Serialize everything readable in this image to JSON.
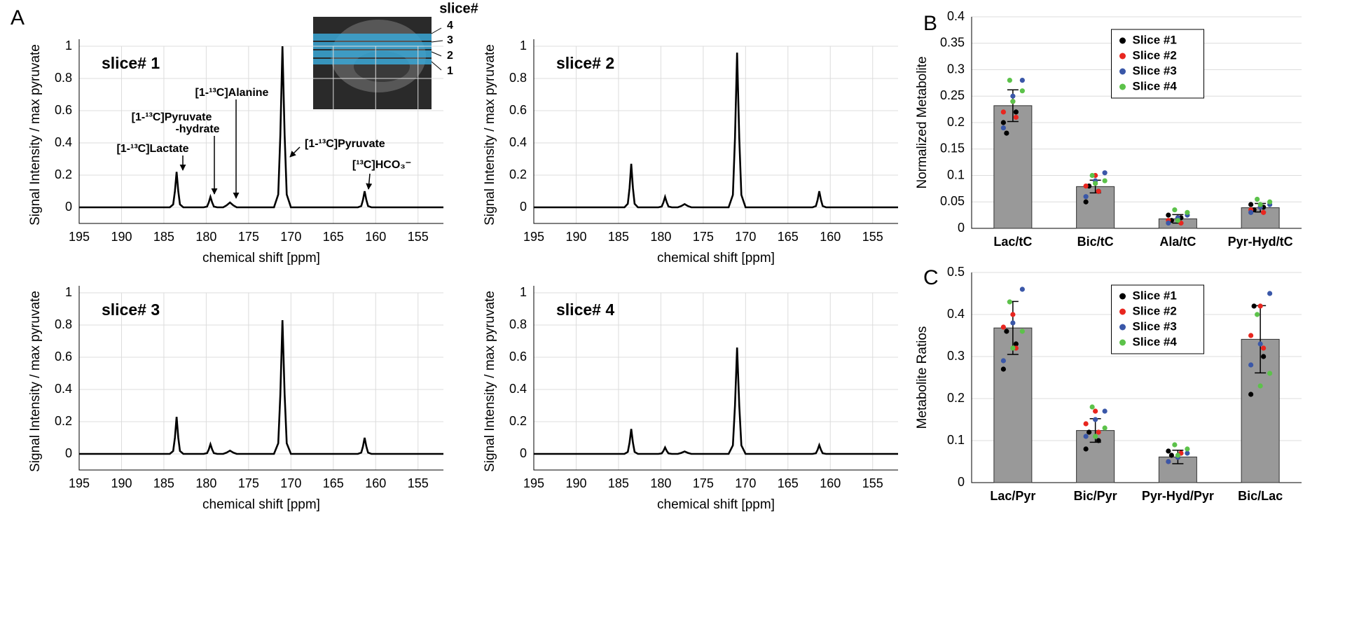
{
  "panels": [
    "A",
    "B",
    "C"
  ],
  "inset": {
    "title": "slice#",
    "labels": [
      "4",
      "3",
      "2",
      "1"
    ]
  },
  "chart_data": [
    {
      "type": "line",
      "title": "slice# 1",
      "xlabel": "chemical shift [ppm]",
      "ylabel": "Signal Intensity / max pyruvate",
      "color": "#000000",
      "grid": true,
      "xlim": [
        195,
        152
      ],
      "xticks": [
        195,
        190,
        185,
        180,
        175,
        170,
        165,
        160,
        155
      ],
      "ylim": [
        -0.1,
        1
      ],
      "yticks": [
        0,
        0.2,
        0.4,
        0.6,
        0.8,
        1
      ],
      "x": [
        195,
        185,
        184.3,
        183.9,
        183.7,
        183.5,
        183.3,
        183.1,
        182.7,
        180.3,
        179.9,
        179.7,
        179.5,
        179.3,
        179.1,
        178.7,
        178.0,
        177.6,
        177.2,
        176.8,
        176.4,
        172.0,
        171.5,
        171.25,
        171.0,
        170.75,
        170.5,
        170.0,
        162.1,
        161.7,
        161.5,
        161.3,
        161.1,
        160.9,
        160.5,
        152
      ],
      "values": [
        0,
        0,
        0,
        0.018,
        0.1,
        0.22,
        0.1,
        0.018,
        0,
        0,
        0.005,
        0.03,
        0.065,
        0.03,
        0.005,
        0,
        0,
        0.012,
        0.03,
        0.012,
        0,
        0,
        0.08,
        0.45,
        1.0,
        0.45,
        0.08,
        0,
        0,
        0.008,
        0.045,
        0.1,
        0.045,
        0.008,
        0,
        0
      ],
      "annotations": [
        "[1-¹³C]Lactate",
        "[1-¹³C]Pyruvate",
        "-hydrate",
        "[1-¹³C]Alanine",
        "[1-¹³C]Pyruvate",
        "[¹³C]HCO₃⁻"
      ]
    },
    {
      "type": "line",
      "title": "slice# 2",
      "xlabel": "chemical shift [ppm]",
      "ylabel": "Signal Intensity / max pyruvate",
      "color": "#000000",
      "grid": true,
      "xlim": [
        195,
        152
      ],
      "xticks": [
        195,
        190,
        185,
        180,
        175,
        170,
        165,
        160,
        155
      ],
      "ylim": [
        -0.1,
        1
      ],
      "yticks": [
        0,
        0.2,
        0.4,
        0.6,
        0.8,
        1
      ],
      "x": [
        195,
        185,
        184.3,
        183.9,
        183.7,
        183.5,
        183.3,
        183.1,
        182.7,
        180.3,
        179.9,
        179.7,
        179.5,
        179.3,
        179.1,
        178.7,
        178.0,
        177.6,
        177.2,
        176.8,
        176.4,
        172.0,
        171.5,
        171.25,
        171.0,
        170.75,
        170.5,
        170.0,
        162.1,
        161.7,
        161.5,
        161.3,
        161.1,
        160.9,
        160.5,
        152
      ],
      "values": [
        0,
        0,
        0,
        0.022,
        0.12,
        0.27,
        0.12,
        0.022,
        0,
        0,
        0.005,
        0.03,
        0.065,
        0.03,
        0.005,
        0,
        0,
        0.008,
        0.02,
        0.008,
        0,
        0,
        0.077,
        0.43,
        0.96,
        0.43,
        0.077,
        0,
        0,
        0.008,
        0.045,
        0.1,
        0.045,
        0.008,
        0,
        0
      ]
    },
    {
      "type": "line",
      "title": "slice# 3",
      "xlabel": "chemical shift [ppm]",
      "ylabel": "Signal Intensity / max pyruvate",
      "color": "#000000",
      "grid": true,
      "xlim": [
        195,
        152
      ],
      "xticks": [
        195,
        190,
        185,
        180,
        175,
        170,
        165,
        160,
        155
      ],
      "ylim": [
        -0.1,
        1
      ],
      "yticks": [
        0,
        0.2,
        0.4,
        0.6,
        0.8,
        1
      ],
      "x": [
        195,
        185,
        184.3,
        183.9,
        183.7,
        183.5,
        183.3,
        183.1,
        182.7,
        180.3,
        179.9,
        179.7,
        179.5,
        179.3,
        179.1,
        178.7,
        178.0,
        177.6,
        177.2,
        176.8,
        176.4,
        172.0,
        171.5,
        171.25,
        171.0,
        170.75,
        170.5,
        170.0,
        162.1,
        161.7,
        161.5,
        161.3,
        161.1,
        160.9,
        160.5,
        152
      ],
      "values": [
        0,
        0,
        0,
        0.018,
        0.1,
        0.23,
        0.1,
        0.018,
        0,
        0,
        0.005,
        0.027,
        0.06,
        0.027,
        0.005,
        0,
        0,
        0.008,
        0.02,
        0.008,
        0,
        0,
        0.066,
        0.37,
        0.83,
        0.37,
        0.066,
        0,
        0,
        0.008,
        0.045,
        0.1,
        0.045,
        0.008,
        0,
        0
      ]
    },
    {
      "type": "line",
      "title": "slice# 4",
      "xlabel": "chemical shift [ppm]",
      "ylabel": "Signal Intensity / max pyruvate",
      "color": "#000000",
      "grid": true,
      "xlim": [
        195,
        152
      ],
      "xticks": [
        195,
        190,
        185,
        180,
        175,
        170,
        165,
        160,
        155
      ],
      "ylim": [
        -0.1,
        1
      ],
      "yticks": [
        0,
        0.2,
        0.4,
        0.6,
        0.8,
        1
      ],
      "x": [
        195,
        185,
        184.3,
        183.9,
        183.7,
        183.5,
        183.3,
        183.1,
        182.7,
        180.3,
        179.9,
        179.7,
        179.5,
        179.3,
        179.1,
        178.7,
        178.0,
        177.6,
        177.2,
        176.8,
        176.4,
        172.0,
        171.5,
        171.25,
        171.0,
        170.75,
        170.5,
        170.0,
        162.1,
        161.7,
        161.5,
        161.3,
        161.1,
        160.9,
        160.5,
        152
      ],
      "values": [
        0,
        0,
        0,
        0.012,
        0.07,
        0.155,
        0.07,
        0.012,
        0,
        0,
        0.003,
        0.018,
        0.04,
        0.018,
        0.003,
        0,
        0,
        0.006,
        0.015,
        0.006,
        0,
        0,
        0.053,
        0.3,
        0.66,
        0.3,
        0.053,
        0,
        0,
        0.004,
        0.025,
        0.055,
        0.025,
        0.004,
        0,
        0
      ]
    },
    {
      "type": "bar",
      "ylabel": "Normalized Metabolite",
      "color": "#999999",
      "grid": true,
      "legend": "upper center",
      "categories": [
        "Lac/tC",
        "Bic/tC",
        "Ala/tC",
        "Pyr-Hyd/tC"
      ],
      "values": [
        0.232,
        0.079,
        0.018,
        0.039
      ],
      "errors": [
        0.03,
        0.012,
        0.008,
        0.008
      ],
      "ylim": [
        0,
        0.4
      ],
      "yticks": [
        0,
        0.05,
        0.1,
        0.15,
        0.2,
        0.25,
        0.3,
        0.35,
        0.4
      ],
      "series": [
        {
          "name": "Slice #1",
          "color": "#000000",
          "values": [
            [
              0.2,
              0.22,
              0.18
            ],
            [
              0.05,
              0.07,
              0.08
            ],
            [
              0.025,
              0.02,
              0.015
            ],
            [
              0.045,
              0.04,
              0.035
            ]
          ]
        },
        {
          "name": "Slice #2",
          "color": "#e8261f",
          "values": [
            [
              0.24,
              0.22,
              0.21
            ],
            [
              0.1,
              0.08,
              0.07
            ],
            [
              0.02,
              0.015,
              0.01
            ],
            [
              0.04,
              0.035,
              0.03
            ]
          ]
        },
        {
          "name": "Slice #3",
          "color": "#3a57a8",
          "values": [
            [
              0.28,
              0.25,
              0.19
            ],
            [
              0.105,
              0.09,
              0.06
            ],
            [
              0.025,
              0.02,
              0.01
            ],
            [
              0.045,
              0.04,
              0.03
            ]
          ]
        },
        {
          "name": "Slice #4",
          "color": "#5cc24a",
          "values": [
            [
              0.28,
              0.26,
              0.24
            ],
            [
              0.1,
              0.09,
              0.085
            ],
            [
              0.035,
              0.03,
              0.015
            ],
            [
              0.055,
              0.05,
              0.045
            ]
          ]
        }
      ]
    },
    {
      "type": "bar",
      "ylabel": "Metabolite Ratios",
      "color": "#999999",
      "grid": true,
      "legend": "upper center",
      "categories": [
        "Lac/Pyr",
        "Bic/Pyr",
        "Pyr-Hyd/Pyr",
        "Bic/Lac"
      ],
      "values": [
        0.368,
        0.124,
        0.061,
        0.341
      ],
      "errors": [
        0.063,
        0.028,
        0.016,
        0.08
      ],
      "ylim": [
        0,
        0.5
      ],
      "yticks": [
        0,
        0.1,
        0.2,
        0.3,
        0.4,
        0.5
      ],
      "series": [
        {
          "name": "Slice #1",
          "color": "#000000",
          "values": [
            [
              0.27,
              0.33,
              0.36
            ],
            [
              0.08,
              0.1,
              0.12
            ],
            [
              0.075,
              0.07,
              0.065
            ],
            [
              0.21,
              0.3,
              0.42
            ]
          ]
        },
        {
          "name": "Slice #2",
          "color": "#e8261f",
          "values": [
            [
              0.4,
              0.37,
              0.32
            ],
            [
              0.17,
              0.14,
              0.12
            ],
            [
              0.06,
              0.05,
              0.07
            ],
            [
              0.42,
              0.35,
              0.32
            ]
          ]
        },
        {
          "name": "Slice #3",
          "color": "#3a57a8",
          "values": [
            [
              0.46,
              0.38,
              0.29
            ],
            [
              0.17,
              0.15,
              0.11
            ],
            [
              0.07,
              0.06,
              0.05
            ],
            [
              0.45,
              0.33,
              0.28
            ]
          ]
        },
        {
          "name": "Slice #4",
          "color": "#5cc24a",
          "values": [
            [
              0.43,
              0.36,
              0.32
            ],
            [
              0.18,
              0.13,
              0.11
            ],
            [
              0.09,
              0.08,
              0.065
            ],
            [
              0.4,
              0.26,
              0.23
            ]
          ]
        }
      ]
    }
  ]
}
